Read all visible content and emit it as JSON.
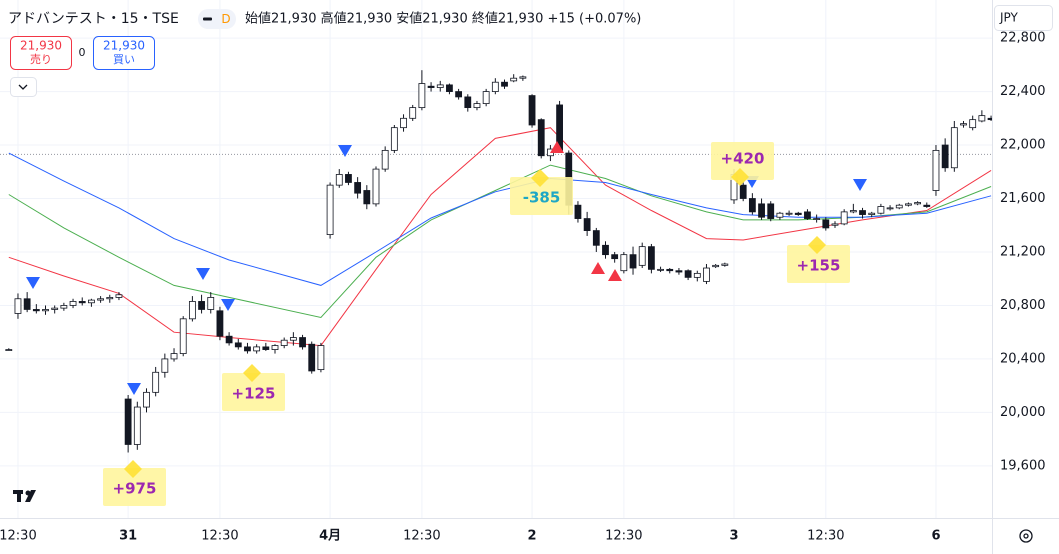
{
  "chart_data": {
    "type": "candlestick",
    "title": "アドバンテスト・15・TSE",
    "interval_badge": "D",
    "ohlc_header": "始値21,930 高値21,930 安値21,930 終値21,930 +15 (+0.07%)",
    "sell_button": {
      "price": "21,930",
      "label": "売り"
    },
    "spread": "0",
    "buy_button": {
      "price": "21,930",
      "label": "買い"
    },
    "currency": "JPY",
    "price_line": 21930,
    "ylim": [
      19210,
      23085
    ],
    "yticks": [
      {
        "value": 19600,
        "label": "19,600"
      },
      {
        "value": 20000,
        "label": "20,000"
      },
      {
        "value": 20400,
        "label": "20,400"
      },
      {
        "value": 20800,
        "label": "20,800"
      },
      {
        "value": 21200,
        "label": "21,200"
      },
      {
        "value": 21600,
        "label": "21,600"
      },
      {
        "value": 22000,
        "label": "22,000"
      },
      {
        "value": 22400,
        "label": "22,400"
      },
      {
        "value": 22800,
        "label": "22,800"
      }
    ],
    "categories": [
      null,
      "12:30",
      null,
      null,
      null,
      null,
      null,
      null,
      null,
      null,
      null,
      null,
      null,
      "31",
      null,
      null,
      null,
      null,
      null,
      null,
      null,
      null,
      null,
      "12:30",
      null,
      null,
      null,
      null,
      null,
      null,
      null,
      null,
      null,
      null,
      null,
      "4月",
      null,
      null,
      null,
      null,
      null,
      null,
      null,
      null,
      null,
      "12:30",
      null,
      null,
      null,
      null,
      null,
      null,
      null,
      null,
      null,
      null,
      null,
      "2",
      null,
      null,
      null,
      null,
      null,
      null,
      null,
      null,
      null,
      "12:30",
      null,
      null,
      null,
      null,
      null,
      null,
      null,
      null,
      null,
      null,
      null,
      "3",
      null,
      null,
      null,
      null,
      null,
      null,
      null,
      null,
      null,
      "12:30",
      null,
      null,
      null,
      null,
      null,
      null,
      null,
      null,
      null,
      null,
      null,
      "6",
      null,
      null,
      null,
      null,
      null,
      null
    ],
    "open": [
      20470,
      20740,
      20850,
      20770,
      20760,
      20770,
      20780,
      20800,
      20830,
      20820,
      20840,
      20850,
      20860,
      20100,
      19760,
      20040,
      20150,
      20300,
      20400,
      20440,
      20700,
      20830,
      20770,
      20760,
      20570,
      20520,
      20490,
      20460,
      20490,
      20470,
      20500,
      20540,
      20560,
      20510,
      20320,
      21330,
      21700,
      21780,
      21720,
      21660,
      21560,
      21820,
      21960,
      22130,
      22200,
      22280,
      22440,
      22430,
      22450,
      22400,
      22360,
      22280,
      22310,
      22400,
      22470,
      22480,
      22500,
      22370,
      22190,
      21920,
      22300,
      21940,
      21550,
      21450,
      21360,
      21250,
      21180,
      21060,
      21180,
      21100,
      21240,
      21070,
      21070,
      21060,
      21060,
      21010,
      20980,
      21090,
      21100,
      21590,
      21700,
      21600,
      21560,
      21560,
      21460,
      21490,
      21490,
      21500,
      21450,
      21440,
      21400,
      21410,
      21500,
      21510,
      21480,
      21490,
      21530,
      21530,
      21550,
      21560,
      21550,
      21660,
      22000,
      21830,
      22150,
      22130,
      22180,
      22200
    ],
    "high": [
      20480,
      20890,
      20900,
      20810,
      20800,
      20800,
      20820,
      20850,
      20860,
      20850,
      20870,
      20880,
      20900,
      20130,
      20080,
      20180,
      20340,
      20440,
      20480,
      20720,
      20870,
      20880,
      20900,
      20790,
      20600,
      20550,
      20520,
      20510,
      20520,
      20510,
      20560,
      20600,
      20580,
      20530,
      20520,
      21720,
      21820,
      21800,
      21760,
      21700,
      21840,
      21990,
      22150,
      22230,
      22300,
      22560,
      22470,
      22480,
      22460,
      22420,
      22380,
      22330,
      22420,
      22500,
      22490,
      22530,
      22520,
      22380,
      22200,
      22000,
      22330,
      21960,
      21580,
      21500,
      21380,
      21280,
      21200,
      21200,
      21240,
      21270,
      21260,
      21090,
      21080,
      21080,
      21070,
      21060,
      21110,
      21110,
      21120,
      21820,
      21720,
      21640,
      21600,
      21580,
      21500,
      21510,
      21500,
      21520,
      21480,
      21460,
      21430,
      21520,
      21560,
      21530,
      21500,
      21560,
      21550,
      21560,
      21570,
      21580,
      21570,
      22000,
      22050,
      22180,
      22180,
      22220,
      22260,
      22220
    ],
    "low": [
      20460,
      20700,
      20750,
      20740,
      20730,
      20740,
      20760,
      20780,
      20800,
      20790,
      20820,
      20820,
      20840,
      19700,
      19720,
      20000,
      20120,
      20260,
      20380,
      20420,
      20680,
      20740,
      20740,
      20540,
      20500,
      20470,
      20440,
      20440,
      20460,
      20440,
      20480,
      20500,
      20470,
      20290,
      20300,
      21300,
      21680,
      21700,
      21600,
      21520,
      21540,
      21800,
      21940,
      22100,
      22180,
      22260,
      22400,
      22400,
      22380,
      22340,
      22250,
      22260,
      22290,
      22380,
      22420,
      22470,
      22480,
      22130,
      21900,
      21880,
      21950,
      21480,
      21420,
      21320,
      21200,
      21150,
      21120,
      21040,
      21030,
      21080,
      21040,
      21050,
      21040,
      21030,
      20990,
      20980,
      20960,
      21080,
      21090,
      21560,
      21580,
      21480,
      21440,
      21430,
      21440,
      21470,
      21470,
      21440,
      21420,
      21360,
      21380,
      21400,
      21490,
      21450,
      21460,
      21480,
      21510,
      21520,
      21540,
      21550,
      21530,
      21620,
      21800,
      21800,
      22130,
      22110,
      22170,
      22180
    ],
    "close": [
      20470,
      20850,
      20770,
      20760,
      20770,
      20780,
      20800,
      20830,
      20820,
      20840,
      20850,
      20860,
      20880,
      19760,
      20040,
      20150,
      20300,
      20400,
      20440,
      20700,
      20830,
      20770,
      20860,
      20570,
      20520,
      20490,
      20460,
      20490,
      20470,
      20500,
      20540,
      20560,
      20490,
      20310,
      20500,
      21700,
      21780,
      21720,
      21640,
      21560,
      21820,
      21960,
      22130,
      22200,
      22280,
      22460,
      22430,
      22450,
      22400,
      22360,
      22280,
      22310,
      22400,
      22470,
      22440,
      22500,
      22510,
      22150,
      21920,
      21970,
      21960,
      21550,
      21450,
      21360,
      21250,
      21180,
      21150,
      21180,
      21080,
      21240,
      21070,
      21070,
      21060,
      21050,
      21010,
      21040,
      21080,
      21100,
      21110,
      21780,
      21600,
      21500,
      21460,
      21450,
      21490,
      21490,
      21480,
      21450,
      21450,
      21380,
      21410,
      21500,
      21510,
      21480,
      21490,
      21540,
      21530,
      21550,
      21560,
      21570,
      21540,
      21960,
      21830,
      22130,
      22160,
      22190,
      22220,
      22190
    ],
    "moving_averages": [
      {
        "color": "#f23645",
        "x": [
          0,
          6,
          12,
          18,
          24,
          34,
          40,
          46,
          53,
          59,
          65,
          70,
          76,
          80,
          86,
          93,
          100,
          107
        ],
        "values": [
          21160,
          21020,
          20890,
          20600,
          20560,
          20500,
          21070,
          21630,
          22050,
          22130,
          21700,
          21510,
          21300,
          21290,
          21360,
          21440,
          21510,
          21810
        ]
      },
      {
        "color": "#4caf50",
        "x": [
          0,
          6,
          12,
          18,
          24,
          34,
          40,
          46,
          53,
          59,
          65,
          70,
          76,
          80,
          86,
          93,
          100,
          107
        ],
        "values": [
          21630,
          21380,
          21160,
          20950,
          20860,
          20710,
          21160,
          21440,
          21660,
          21850,
          21750,
          21620,
          21500,
          21440,
          21440,
          21460,
          21500,
          21690
        ]
      },
      {
        "color": "#2962ff",
        "x": [
          0,
          6,
          12,
          18,
          24,
          34,
          40,
          46,
          53,
          59,
          65,
          70,
          76,
          80,
          86,
          93,
          100,
          107
        ],
        "values": [
          21940,
          21730,
          21530,
          21300,
          21140,
          20950,
          21200,
          21454,
          21650,
          21750,
          21720,
          21630,
          21530,
          21480,
          21460,
          21460,
          21490,
          21620
        ]
      }
    ],
    "trade_labels": [
      {
        "text": "+975",
        "color": "#9c27b0"
      },
      {
        "text": "+125",
        "color": "#9c27b0"
      },
      {
        "text": "-385",
        "color": "#1ea7c5"
      },
      {
        "text": "+420",
        "color": "#9c27b0"
      },
      {
        "text": "+155",
        "color": "#9c27b0"
      }
    ]
  }
}
